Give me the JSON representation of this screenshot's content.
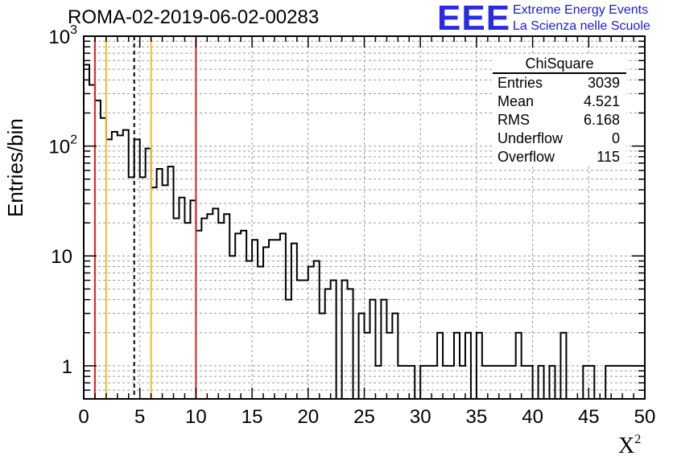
{
  "title": "ROMA-02-2019-06-02-00283",
  "logo": {
    "text": "EEE",
    "line1": "Extreme Energy Events",
    "line2": "La Scienza nelle Scuole"
  },
  "stats_box": {
    "title": "ChiSquare",
    "rows": [
      {
        "label": "Entries",
        "value": "3039"
      },
      {
        "label": "Mean",
        "value": "4.521"
      },
      {
        "label": "RMS",
        "value": "6.168"
      },
      {
        "label": "Underflow",
        "value": "0"
      },
      {
        "label": "Overflow",
        "value": "115"
      }
    ]
  },
  "chart_data": {
    "type": "histogram",
    "xlabel": "X",
    "xlabel_sup": "2",
    "ylabel": "Entries/bin",
    "y_scale": "log",
    "xlim": [
      0,
      50
    ],
    "ylim": [
      0.5,
      1000
    ],
    "grid": true,
    "bin_width": 1,
    "x_ticks": [
      "0",
      "5",
      "10",
      "15",
      "20",
      "25",
      "30",
      "35",
      "40",
      "45",
      "50"
    ],
    "y_ticks": [
      {
        "value": 1,
        "label": "1"
      },
      {
        "value": 10,
        "label": "10"
      },
      {
        "value": 100,
        "label": "10",
        "sup": "2"
      },
      {
        "value": 1000,
        "label": "10",
        "sup": "3"
      }
    ],
    "bins": [
      [
        0,
        1,
        550
      ],
      [
        0.5,
        1,
        360
      ],
      [
        1,
        1,
        260
      ],
      [
        1.5,
        1,
        180
      ],
      [
        2,
        1,
        115
      ],
      [
        2.5,
        1,
        135
      ],
      [
        3,
        1,
        125
      ],
      [
        3.5,
        1,
        140
      ],
      [
        4,
        1,
        52
      ],
      [
        4.5,
        1,
        115
      ],
      [
        5,
        1,
        52
      ],
      [
        5.5,
        1,
        95
      ],
      [
        6,
        1,
        42
      ],
      [
        6.5,
        1,
        62
      ],
      [
        7,
        1,
        44
      ],
      [
        7.5,
        1,
        65
      ],
      [
        8,
        1,
        22
      ],
      [
        8.5,
        1,
        34
      ],
      [
        9,
        1,
        20
      ],
      [
        9.5,
        1,
        32
      ],
      [
        10,
        1,
        17
      ],
      [
        10.5,
        1,
        22
      ],
      [
        11,
        1,
        24
      ],
      [
        11.5,
        1,
        27
      ],
      [
        12,
        1,
        20
      ],
      [
        12.5,
        1,
        24
      ],
      [
        13,
        1,
        10
      ],
      [
        13.5,
        1,
        16
      ],
      [
        14,
        1,
        17
      ],
      [
        14.5,
        1,
        9
      ],
      [
        15,
        1,
        14
      ],
      [
        15.5,
        1,
        8
      ],
      [
        16,
        1,
        12
      ],
      [
        16.5,
        1,
        14
      ],
      [
        17,
        1,
        14
      ],
      [
        17.5,
        1,
        16
      ],
      [
        18,
        1,
        4
      ],
      [
        18.5,
        1,
        13
      ],
      [
        19,
        1,
        6
      ],
      [
        19.5,
        1,
        6
      ],
      [
        20,
        1,
        8
      ],
      [
        20.5,
        1,
        9
      ],
      [
        21,
        1,
        3
      ],
      [
        21.5,
        1,
        5
      ],
      [
        22,
        1,
        6
      ],
      [
        22.5,
        1,
        0
      ],
      [
        23,
        1,
        6
      ],
      [
        23.5,
        1,
        5
      ],
      [
        24,
        1,
        0
      ],
      [
        24.5,
        1,
        3
      ],
      [
        25,
        1,
        2
      ],
      [
        25.5,
        1,
        4
      ],
      [
        26,
        1,
        1
      ],
      [
        26.5,
        1,
        4
      ],
      [
        27,
        1,
        2
      ],
      [
        27.5,
        1,
        3
      ],
      [
        28,
        1,
        1
      ],
      [
        28.5,
        1,
        1
      ],
      [
        29,
        1,
        1
      ],
      [
        29.5,
        1,
        0
      ],
      [
        30,
        1,
        1
      ],
      [
        30.5,
        1,
        1
      ],
      [
        31,
        1,
        1
      ],
      [
        31.5,
        1,
        2
      ],
      [
        32,
        1,
        1
      ],
      [
        32.5,
        1,
        1
      ],
      [
        33,
        1,
        2
      ],
      [
        33.5,
        1,
        1
      ],
      [
        34,
        1,
        2
      ],
      [
        34.5,
        1,
        0
      ],
      [
        35,
        1,
        2
      ],
      [
        35.5,
        1,
        1
      ],
      [
        36,
        1,
        1
      ],
      [
        36.5,
        1,
        1
      ],
      [
        37,
        1,
        1
      ],
      [
        37.5,
        1,
        1
      ],
      [
        38,
        1,
        1
      ],
      [
        38.5,
        1,
        2
      ],
      [
        39,
        1,
        1
      ],
      [
        39.5,
        1,
        1
      ],
      [
        40,
        1,
        0
      ],
      [
        40.5,
        1,
        1
      ],
      [
        41,
        1,
        0
      ],
      [
        41.5,
        1,
        1
      ],
      [
        42,
        1,
        0
      ],
      [
        42.5,
        1,
        2
      ],
      [
        43,
        1,
        0
      ],
      [
        43.5,
        1,
        0
      ],
      [
        44,
        1,
        0
      ],
      [
        44.5,
        1,
        1
      ],
      [
        45,
        1,
        1
      ],
      [
        45.5,
        1,
        0
      ],
      [
        46,
        1,
        0
      ],
      [
        46.5,
        1,
        1
      ],
      [
        47,
        1,
        1
      ],
      [
        47.5,
        1,
        1
      ],
      [
        48,
        1,
        1
      ],
      [
        48.5,
        1,
        1
      ],
      [
        49,
        1,
        1
      ],
      [
        49.5,
        1,
        1
      ]
    ],
    "vlines": [
      {
        "x": 1,
        "color": "#e02020",
        "style": "solid"
      },
      {
        "x": 2,
        "color": "#f0c020",
        "style": "solid"
      },
      {
        "x": 4.5,
        "color": "#000000",
        "style": "dashed"
      },
      {
        "x": 6,
        "color": "#f0c020",
        "style": "solid"
      },
      {
        "x": 10,
        "color": "#e02020",
        "style": "solid"
      }
    ]
  }
}
